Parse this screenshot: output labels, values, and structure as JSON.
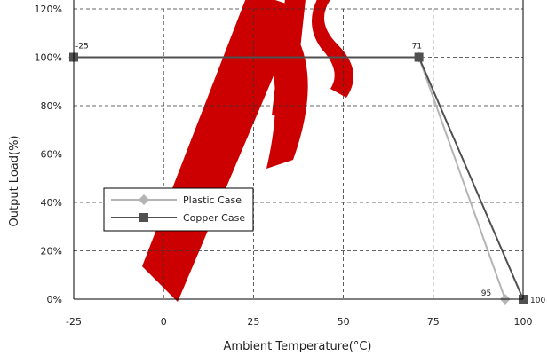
{
  "chart_data": {
    "type": "line",
    "title": "",
    "xlabel": "Ambient Temperature(°C)",
    "ylabel": "Output Load(%)",
    "xlim": [
      -25,
      100
    ],
    "ylim": [
      0,
      120
    ],
    "x_ticks": [
      "-25",
      "0",
      "25",
      "50",
      "75",
      "100"
    ],
    "y_ticks": [
      "0%",
      "20%",
      "40%",
      "60%",
      "80%",
      "100%",
      "120%"
    ],
    "grid": true,
    "legend": {
      "position": "left-middle"
    },
    "series": [
      {
        "name": "Plastic Case",
        "color": "#b4b4b4",
        "marker": "diamond",
        "x": [
          -25,
          71,
          95
        ],
        "y": [
          100,
          100,
          0
        ]
      },
      {
        "name": "Copper Case",
        "color": "#505050",
        "marker": "square",
        "x": [
          -25,
          71,
          100
        ],
        "y": [
          100,
          100,
          0
        ]
      }
    ],
    "annotations": [
      {
        "text": "-25",
        "x": -25,
        "y": 100
      },
      {
        "text": "71",
        "x": 71,
        "y": 100
      },
      {
        "text": "95",
        "x": 95,
        "y": 0
      },
      {
        "text": "100",
        "x": 100,
        "y": 0
      }
    ],
    "watermark": "DIS",
    "watermark_color": "#cc0000"
  }
}
